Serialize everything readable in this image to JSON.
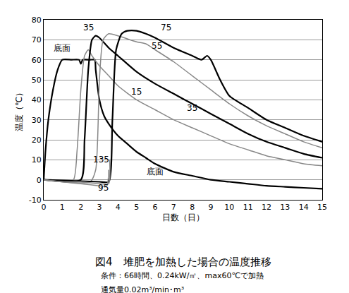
{
  "chart_data": {
    "type": "line",
    "title": "図4　堆肥を加熱した場合の温度推移",
    "subtitle": [
      "条件：66時間、0.24kW/㎡、max60℃で加熱",
      "通気量0.02m³/min･m³"
    ],
    "x_label": "日数（日）",
    "y_label": "温度（℃）",
    "xlim": [
      0,
      15
    ],
    "xticks": [
      0,
      1,
      2,
      3,
      4,
      5,
      6,
      7,
      8,
      9,
      10,
      11,
      12,
      13,
      14,
      15
    ],
    "ylim": [
      -10,
      80
    ],
    "yticks": [
      -10,
      0,
      10,
      20,
      30,
      40,
      50,
      60,
      70,
      80
    ],
    "grid": "y",
    "series": [
      {
        "name": "底面",
        "color": "#000000",
        "x": [
          0,
          0.1,
          0.25,
          0.5,
          0.75,
          1,
          1.5,
          1.9,
          2,
          2.1,
          2.5,
          2.75,
          2.8,
          3,
          3.25,
          3.5,
          4,
          4.5,
          5,
          5.5,
          6,
          7,
          8,
          9,
          10,
          11,
          12,
          13,
          14,
          15
        ],
        "values": [
          0,
          15,
          30,
          45,
          55,
          60,
          60,
          60,
          58,
          60,
          60,
          60,
          55,
          40,
          32,
          28,
          22,
          18,
          14,
          11,
          8,
          4,
          2,
          0,
          -1,
          -2,
          -3,
          -3.5,
          -4,
          -4.5
        ]
      },
      {
        "name": "15",
        "color": "#888888",
        "x": [
          0,
          1,
          1.6,
          1.8,
          2,
          2.2,
          2.4,
          2.6,
          3,
          3.5,
          4,
          5,
          6,
          7,
          8,
          9,
          10,
          11,
          12,
          13,
          14,
          15
        ],
        "values": [
          0,
          0,
          0,
          15,
          45,
          62,
          65,
          62,
          57,
          52,
          47,
          40,
          35,
          30,
          26,
          22,
          18,
          15,
          12,
          10,
          8,
          7
        ]
      },
      {
        "name": "35",
        "color": "#000000",
        "x": [
          0,
          2,
          2.2,
          2.4,
          2.6,
          2.8,
          3,
          3.5,
          4,
          5,
          6,
          7,
          8,
          9,
          10,
          11,
          12,
          13,
          14,
          15
        ],
        "values": [
          0,
          0,
          20,
          55,
          70,
          72,
          71,
          66,
          62,
          54,
          48,
          43,
          38,
          33,
          28,
          23,
          19,
          16,
          13,
          11
        ]
      },
      {
        "name": "55",
        "color": "#888888",
        "x": [
          0,
          2.5,
          2.8,
          3,
          3.2,
          3.5,
          4,
          5,
          5.5,
          6,
          7,
          8,
          9,
          10,
          11,
          12,
          13,
          14,
          15
        ],
        "values": [
          0,
          -1,
          5,
          50,
          70,
          73,
          72,
          69,
          68,
          65,
          59,
          52,
          45,
          38,
          32,
          27,
          23,
          19,
          16
        ]
      },
      {
        "name": "75",
        "color": "#000000",
        "x": [
          0,
          3,
          3.5,
          3.7,
          3.9,
          4.2,
          4.5,
          5,
          5.5,
          6,
          7,
          8,
          8.5,
          8.8,
          9,
          9.5,
          10,
          11,
          12,
          13,
          14,
          15
        ],
        "values": [
          0,
          -1,
          -1,
          30,
          65,
          73,
          74.5,
          74.5,
          73,
          71,
          66,
          62,
          60,
          62,
          60,
          50,
          42,
          36,
          30,
          26,
          22,
          19
        ]
      },
      {
        "name": "95",
        "color": "#888888",
        "x": [
          0,
          1,
          2,
          3,
          3.4,
          3.5
        ],
        "values": [
          0,
          -1,
          -2,
          -3,
          -3,
          5
        ]
      },
      {
        "name": "135",
        "color": "#888888",
        "x": [
          0,
          1,
          2,
          3,
          3.5,
          3.55
        ],
        "values": [
          0,
          -1,
          -1,
          -2,
          -2,
          10
        ]
      }
    ],
    "annotations": [
      {
        "text": "底面",
        "x": 1.0,
        "y": 66
      },
      {
        "text": "35",
        "x": 2.4,
        "y": 76
      },
      {
        "text": "75",
        "x": 6.6,
        "y": 76
      },
      {
        "text": "55",
        "x": 6.1,
        "y": 67
      },
      {
        "text": "15",
        "x": 5.0,
        "y": 44
      },
      {
        "text": "35",
        "x": 8.0,
        "y": 36
      },
      {
        "text": "底面",
        "x": 6.0,
        "y": 4
      },
      {
        "text": "135",
        "x": 3.1,
        "y": 10
      },
      {
        "text": "95",
        "x": 3.2,
        "y": -4
      }
    ]
  }
}
